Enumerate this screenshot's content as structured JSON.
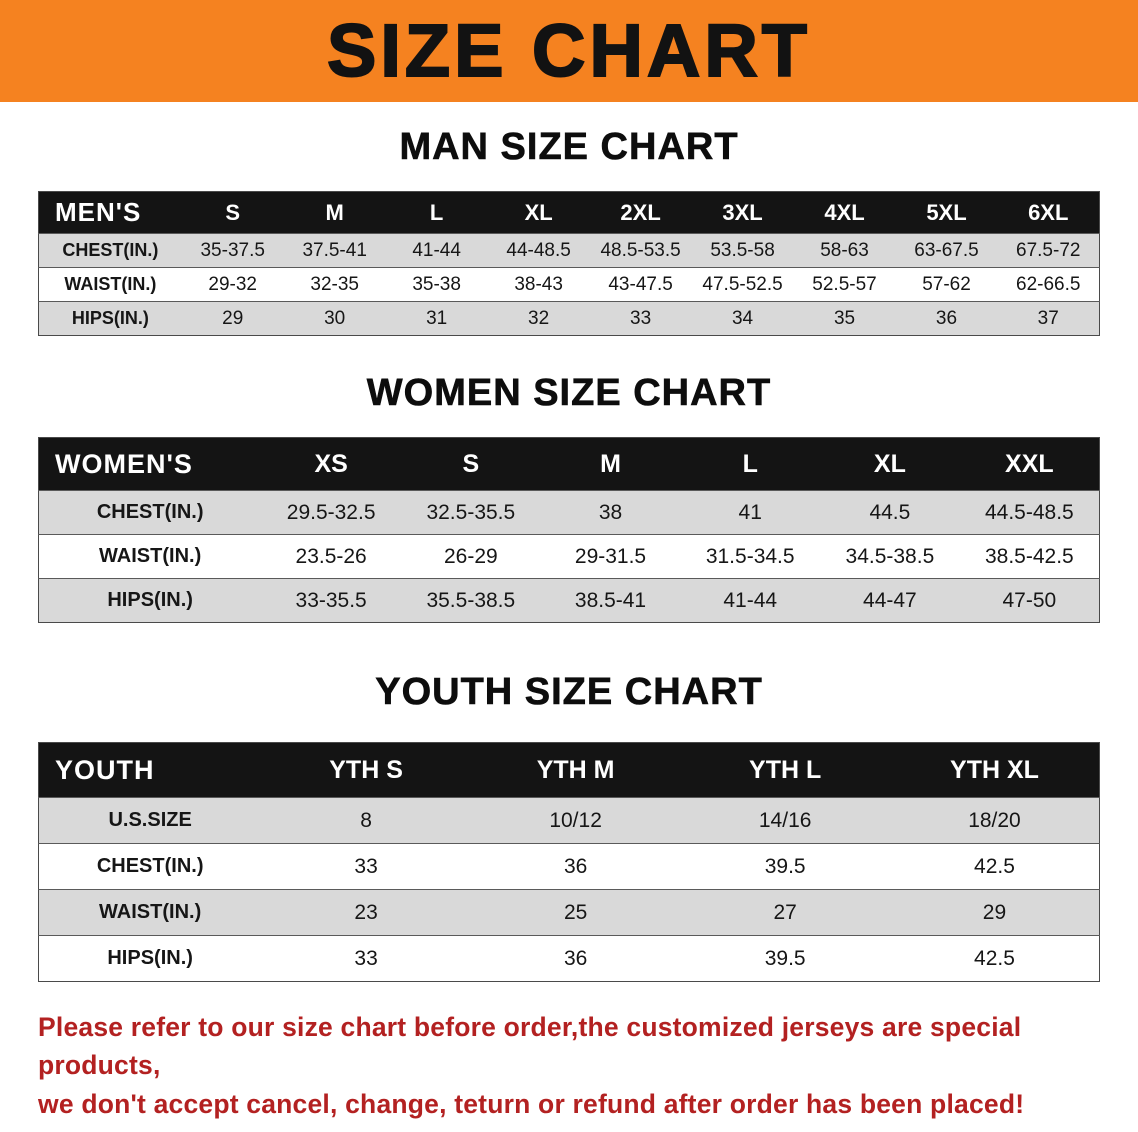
{
  "colors": {
    "banner_bg": "#f58220",
    "header_bar_bg": "#141414",
    "header_bar_text": "#ffffff",
    "row_shade": "#d9d9d9",
    "disclaimer_text": "#b32121"
  },
  "banner": {
    "title": "SIZE CHART"
  },
  "sections": [
    {
      "heading": "MAN SIZE CHART",
      "table": {
        "header_label": "MEN'S",
        "columns": [
          "S",
          "M",
          "L",
          "XL",
          "2XL",
          "3XL",
          "4XL",
          "5XL",
          "6XL"
        ],
        "rows": [
          {
            "label": "CHEST(IN.)",
            "values": [
              "35-37.5",
              "37.5-41",
              "41-44",
              "44-48.5",
              "48.5-53.5",
              "53.5-58",
              "58-63",
              "63-67.5",
              "67.5-72"
            ]
          },
          {
            "label": "WAIST(IN.)",
            "values": [
              "29-32",
              "32-35",
              "35-38",
              "38-43",
              "43-47.5",
              "47.5-52.5",
              "52.5-57",
              "57-62",
              "62-66.5"
            ]
          },
          {
            "label": "HIPS(IN.)",
            "values": [
              "29",
              "30",
              "31",
              "32",
              "33",
              "34",
              "35",
              "36",
              "37"
            ]
          }
        ]
      }
    },
    {
      "heading": "WOMEN SIZE CHART",
      "table": {
        "header_label": "WOMEN'S",
        "columns": [
          "XS",
          "S",
          "M",
          "L",
          "XL",
          "XXL"
        ],
        "rows": [
          {
            "label": "CHEST(IN.)",
            "values": [
              "29.5-32.5",
              "32.5-35.5",
              "38",
              "41",
              "44.5",
              "44.5-48.5"
            ]
          },
          {
            "label": "WAIST(IN.)",
            "values": [
              "23.5-26",
              "26-29",
              "29-31.5",
              "31.5-34.5",
              "34.5-38.5",
              "38.5-42.5"
            ]
          },
          {
            "label": "HIPS(IN.)",
            "values": [
              "33-35.5",
              "35.5-38.5",
              "38.5-41",
              "41-44",
              "44-47",
              "47-50"
            ]
          }
        ]
      }
    },
    {
      "heading": "YOUTH SIZE CHART",
      "table": {
        "header_label": "YOUTH",
        "columns": [
          "YTH S",
          "YTH M",
          "YTH L",
          "YTH XL"
        ],
        "rows": [
          {
            "label": "U.S.SIZE",
            "values": [
              "8",
              "10/12",
              "14/16",
              "18/20"
            ]
          },
          {
            "label": "CHEST(IN.)",
            "values": [
              "33",
              "36",
              "39.5",
              "42.5"
            ]
          },
          {
            "label": "WAIST(IN.)",
            "values": [
              "23",
              "25",
              "27",
              "29"
            ]
          },
          {
            "label": "HIPS(IN.)",
            "values": [
              "33",
              "36",
              "39.5",
              "42.5"
            ]
          }
        ]
      }
    }
  ],
  "disclaimer": {
    "line1": "Please refer to our size chart before order,the customized jerseys are special products,",
    "line2": "we don't accept cancel, change, teturn or refund after order has been placed!"
  }
}
